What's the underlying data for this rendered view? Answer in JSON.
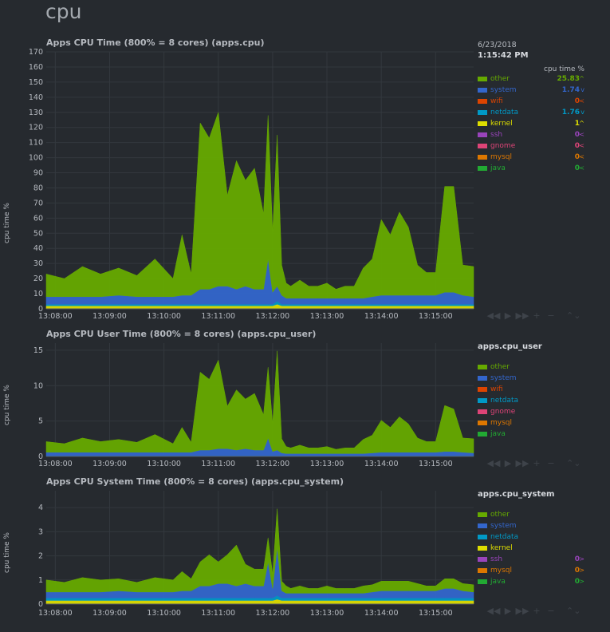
{
  "section_title": "cpu",
  "legend_time": {
    "date": "6/23/2018",
    "time": "1:15:42 PM",
    "unit": "cpu time %"
  },
  "colors": {
    "other": "#66aa00",
    "system": "#3366cc",
    "wifi": "#dd4400",
    "netdata": "#0099c6",
    "kernel": "#dddd00",
    "ssh": "#9944bb",
    "gnome": "#dd4477",
    "mysql": "#dd7700",
    "java": "#22aa33"
  },
  "x_ticks": [
    "13:08:00",
    "13:09:00",
    "13:10:00",
    "13:11:00",
    "13:12:00",
    "13:13:00",
    "13:14:00",
    "13:15:00"
  ],
  "controls": [
    "◀◀",
    "▶",
    "▶▶",
    "+",
    "−",
    "⌃⌄"
  ],
  "charts": [
    {
      "id": "apps.cpu",
      "title": "Apps CPU Time (800% = 8 cores) (apps.cpu)",
      "ylabel": "cpu time %",
      "y_ticks": [
        "0",
        "10",
        "20",
        "30",
        "40",
        "50",
        "60",
        "70",
        "80",
        "90",
        "100",
        "110",
        "120",
        "130",
        "140",
        "150",
        "160",
        "170"
      ],
      "legend_header": "time",
      "legend": [
        {
          "name": "other",
          "value": "25.83",
          "arrow": "^"
        },
        {
          "name": "system",
          "value": "1.74",
          "arrow": "v"
        },
        {
          "name": "wifi",
          "value": "0",
          "arrow": "<"
        },
        {
          "name": "netdata",
          "value": "1.76",
          "arrow": "v"
        },
        {
          "name": "kernel",
          "value": "1",
          "arrow": "^"
        },
        {
          "name": "ssh",
          "value": "0",
          "arrow": "<"
        },
        {
          "name": "gnome",
          "value": "0",
          "arrow": "<"
        },
        {
          "name": "mysql",
          "value": "0",
          "arrow": "<"
        },
        {
          "name": "java",
          "value": "0",
          "arrow": "<"
        }
      ]
    },
    {
      "id": "apps.cpu_user",
      "title": "Apps CPU User Time (800% = 8 cores) (apps.cpu_user)",
      "ylabel": "cpu time %",
      "y_ticks": [
        "0",
        "5",
        "10",
        "15"
      ],
      "legend_header": "apps.cpu_user",
      "legend": [
        {
          "name": "other",
          "value": "",
          "arrow": ""
        },
        {
          "name": "system",
          "value": "",
          "arrow": ""
        },
        {
          "name": "wifi",
          "value": "",
          "arrow": ""
        },
        {
          "name": "netdata",
          "value": "",
          "arrow": ""
        },
        {
          "name": "gnome",
          "value": "",
          "arrow": ""
        },
        {
          "name": "mysql",
          "value": "",
          "arrow": ""
        },
        {
          "name": "java",
          "value": "",
          "arrow": ""
        }
      ]
    },
    {
      "id": "apps.cpu_system",
      "title": "Apps CPU System Time (800% = 8 cores) (apps.cpu_system)",
      "ylabel": "cpu time %",
      "y_ticks": [
        "0",
        "1",
        "2",
        "3",
        "4"
      ],
      "legend_header": "apps.cpu_system",
      "legend": [
        {
          "name": "other",
          "value": "",
          "arrow": ""
        },
        {
          "name": "system",
          "value": "",
          "arrow": ""
        },
        {
          "name": "netdata",
          "value": "",
          "arrow": ""
        },
        {
          "name": "kernel",
          "value": "",
          "arrow": ""
        },
        {
          "name": "ssh",
          "value": "0",
          "arrow": ">"
        },
        {
          "name": "mysql",
          "value": "0",
          "arrow": ">"
        },
        {
          "name": "java",
          "value": "0",
          "arrow": ">"
        }
      ]
    }
  ],
  "chart_data": [
    {
      "type": "area",
      "title": "Apps CPU Time (800% = 8 cores) (apps.cpu)",
      "ylabel": "cpu time %",
      "ylim": [
        0,
        170
      ],
      "x_range": [
        "13:07:50",
        "13:15:42"
      ],
      "stacked": true,
      "grid": true,
      "x_seconds": [
        0,
        20,
        40,
        60,
        80,
        100,
        120,
        140,
        150,
        160,
        170,
        180,
        190,
        200,
        210,
        220,
        230,
        240,
        245,
        250,
        255,
        260,
        265,
        270,
        280,
        290,
        300,
        310,
        320,
        330,
        340,
        350,
        360,
        370,
        380,
        390,
        400,
        410,
        420,
        430,
        440,
        450,
        460,
        472
      ],
      "series": [
        {
          "name": "kernel",
          "values": [
            2,
            2,
            2,
            2,
            2,
            2,
            2,
            2,
            2,
            2,
            2,
            2,
            2,
            2,
            2,
            2,
            2,
            2,
            2,
            2,
            3,
            2,
            2,
            2,
            2,
            2,
            2,
            2,
            2,
            2,
            2,
            2,
            2,
            2,
            2,
            2,
            2,
            2,
            2,
            2,
            2,
            2,
            2,
            2
          ]
        },
        {
          "name": "netdata",
          "values": [
            1,
            1,
            1,
            1,
            1,
            1,
            1,
            1,
            1,
            1,
            1,
            1,
            1,
            1,
            1,
            1,
            1,
            1,
            1,
            1,
            2,
            1,
            1,
            1,
            1,
            1,
            1,
            1,
            1,
            1,
            1,
            1,
            1,
            1,
            1,
            1,
            1,
            1,
            1,
            1,
            1,
            1,
            1,
            1
          ]
        },
        {
          "name": "system",
          "values": [
            5,
            5,
            5,
            5,
            6,
            5,
            5,
            5,
            6,
            6,
            10,
            10,
            12,
            12,
            10,
            12,
            10,
            10,
            30,
            8,
            10,
            6,
            4,
            4,
            4,
            4,
            4,
            4,
            4,
            4,
            4,
            4,
            5,
            6,
            6,
            6,
            6,
            6,
            6,
            6,
            8,
            8,
            6,
            5
          ]
        },
        {
          "name": "other",
          "values": [
            15,
            12,
            20,
            15,
            18,
            14,
            25,
            12,
            40,
            14,
            110,
            100,
            115,
            60,
            85,
            70,
            80,
            50,
            95,
            40,
            100,
            20,
            10,
            8,
            12,
            8,
            8,
            10,
            6,
            8,
            8,
            20,
            25,
            50,
            40,
            55,
            45,
            20,
            15,
            15,
            70,
            70,
            20,
            20
          ]
        }
      ]
    },
    {
      "type": "area",
      "title": "Apps CPU User Time (800% = 8 cores) (apps.cpu_user)",
      "ylabel": "cpu time %",
      "ylim": [
        0,
        16
      ],
      "x_range": [
        "13:07:50",
        "13:15:42"
      ],
      "stacked": true,
      "grid": true,
      "x_seconds": [
        0,
        20,
        40,
        60,
        80,
        100,
        120,
        140,
        150,
        160,
        170,
        180,
        190,
        200,
        210,
        220,
        230,
        240,
        245,
        250,
        255,
        260,
        265,
        270,
        280,
        290,
        300,
        310,
        320,
        330,
        340,
        350,
        360,
        370,
        380,
        390,
        400,
        410,
        420,
        430,
        440,
        450,
        460,
        472
      ],
      "series": [
        {
          "name": "netdata",
          "values": [
            0.1,
            0.1,
            0.1,
            0.1,
            0.1,
            0.1,
            0.1,
            0.1,
            0.1,
            0.1,
            0.1,
            0.1,
            0.1,
            0.1,
            0.1,
            0.1,
            0.1,
            0.1,
            0.1,
            0.1,
            0.1,
            0.1,
            0.1,
            0.1,
            0.1,
            0.1,
            0.1,
            0.1,
            0.1,
            0.1,
            0.1,
            0.1,
            0.1,
            0.1,
            0.1,
            0.1,
            0.1,
            0.1,
            0.1,
            0.1,
            0.1,
            0.1,
            0.1,
            0.1
          ]
        },
        {
          "name": "system",
          "values": [
            0.5,
            0.5,
            0.5,
            0.5,
            0.5,
            0.5,
            0.5,
            0.5,
            0.5,
            0.5,
            0.8,
            0.8,
            1,
            1,
            0.8,
            1,
            0.8,
            0.8,
            2.5,
            0.6,
            0.8,
            0.4,
            0.3,
            0.3,
            0.3,
            0.3,
            0.3,
            0.3,
            0.3,
            0.3,
            0.3,
            0.3,
            0.4,
            0.5,
            0.5,
            0.5,
            0.5,
            0.5,
            0.5,
            0.5,
            0.6,
            0.6,
            0.5,
            0.4
          ]
        },
        {
          "name": "other",
          "values": [
            1.5,
            1.2,
            2,
            1.5,
            1.8,
            1.4,
            2.5,
            1.2,
            3.5,
            1.4,
            11,
            10,
            12.5,
            6,
            8.5,
            7,
            8,
            5,
            10,
            4,
            14,
            2,
            1,
            0.8,
            1.2,
            0.8,
            0.8,
            1,
            0.6,
            0.8,
            0.8,
            2,
            2.5,
            4.5,
            3.5,
            5,
            4,
            2,
            1.5,
            1.5,
            6.5,
            6,
            2,
            2
          ]
        }
      ]
    },
    {
      "type": "area",
      "title": "Apps CPU System Time (800% = 8 cores) (apps.cpu_system)",
      "ylabel": "cpu time %",
      "ylim": [
        0,
        4.7
      ],
      "x_range": [
        "13:07:50",
        "13:15:42"
      ],
      "stacked": true,
      "grid": true,
      "x_seconds": [
        0,
        20,
        40,
        60,
        80,
        100,
        120,
        140,
        150,
        160,
        170,
        180,
        190,
        200,
        210,
        220,
        230,
        240,
        245,
        250,
        255,
        260,
        265,
        270,
        280,
        290,
        300,
        310,
        320,
        330,
        340,
        350,
        360,
        370,
        380,
        390,
        400,
        410,
        420,
        430,
        440,
        450,
        460,
        472
      ],
      "series": [
        {
          "name": "kernel",
          "values": [
            0.15,
            0.15,
            0.15,
            0.15,
            0.15,
            0.15,
            0.15,
            0.15,
            0.15,
            0.15,
            0.15,
            0.15,
            0.15,
            0.15,
            0.15,
            0.15,
            0.15,
            0.15,
            0.15,
            0.15,
            0.2,
            0.15,
            0.15,
            0.15,
            0.15,
            0.15,
            0.15,
            0.15,
            0.15,
            0.15,
            0.15,
            0.15,
            0.15,
            0.15,
            0.15,
            0.15,
            0.15,
            0.15,
            0.15,
            0.15,
            0.15,
            0.15,
            0.15,
            0.15
          ]
        },
        {
          "name": "netdata",
          "values": [
            0.1,
            0.1,
            0.1,
            0.1,
            0.1,
            0.1,
            0.1,
            0.1,
            0.1,
            0.1,
            0.1,
            0.1,
            0.1,
            0.1,
            0.1,
            0.1,
            0.1,
            0.1,
            0.1,
            0.1,
            0.15,
            0.1,
            0.1,
            0.1,
            0.1,
            0.1,
            0.1,
            0.1,
            0.1,
            0.1,
            0.1,
            0.1,
            0.1,
            0.1,
            0.1,
            0.1,
            0.1,
            0.1,
            0.1,
            0.1,
            0.1,
            0.1,
            0.1,
            0.1
          ]
        },
        {
          "name": "system",
          "values": [
            0.25,
            0.25,
            0.25,
            0.25,
            0.3,
            0.25,
            0.25,
            0.25,
            0.3,
            0.3,
            0.5,
            0.5,
            0.6,
            0.6,
            0.5,
            0.6,
            0.5,
            0.5,
            1.5,
            0.4,
            2,
            0.3,
            0.2,
            0.2,
            0.2,
            0.2,
            0.2,
            0.2,
            0.2,
            0.2,
            0.2,
            0.2,
            0.25,
            0.3,
            0.3,
            0.3,
            0.3,
            0.3,
            0.3,
            0.3,
            0.4,
            0.4,
            0.3,
            0.25
          ]
        },
        {
          "name": "other",
          "values": [
            0.5,
            0.4,
            0.6,
            0.5,
            0.5,
            0.4,
            0.6,
            0.5,
            0.8,
            0.5,
            1,
            1.3,
            0.9,
            1.2,
            1.7,
            0.8,
            0.7,
            0.7,
            1,
            0.6,
            1.6,
            0.4,
            0.3,
            0.2,
            0.3,
            0.2,
            0.2,
            0.3,
            0.2,
            0.2,
            0.2,
            0.3,
            0.3,
            0.4,
            0.4,
            0.4,
            0.4,
            0.3,
            0.2,
            0.2,
            0.4,
            0.4,
            0.3,
            0.3
          ]
        }
      ]
    }
  ]
}
